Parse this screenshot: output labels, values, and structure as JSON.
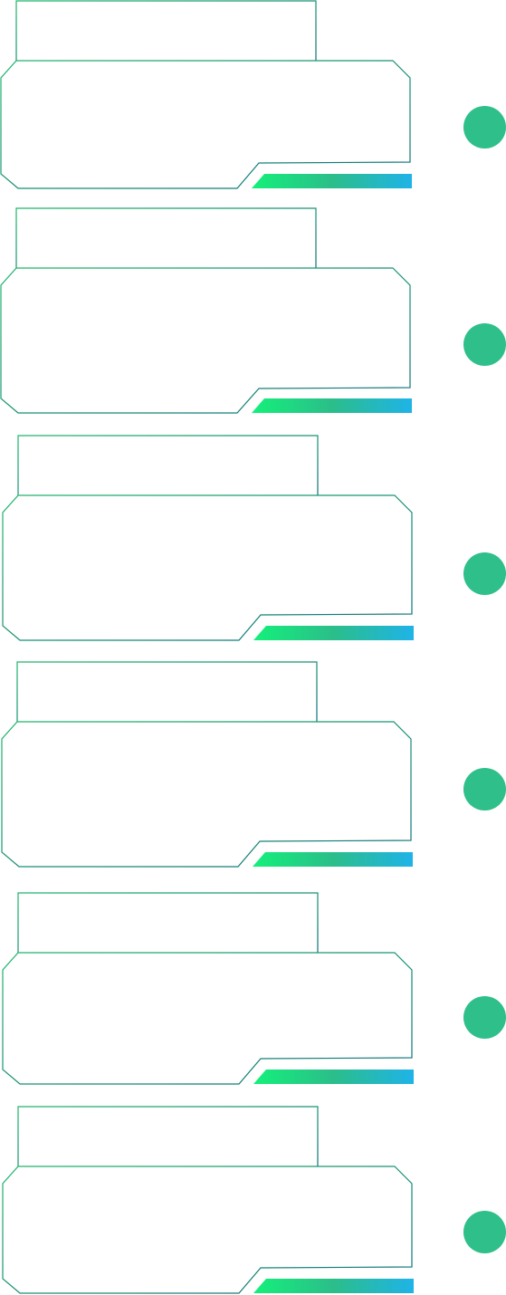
{
  "theme": {
    "border_start": "#1FB56B",
    "border_end": "#0E6E7A",
    "bar_start": "#14F07A",
    "bar_mid": "#2BBE8A",
    "bar_end": "#1FB3E8",
    "dot_color": "#2EBF8A"
  },
  "panels": [
    {
      "id": "panel-1"
    },
    {
      "id": "panel-2"
    },
    {
      "id": "panel-3"
    },
    {
      "id": "panel-4"
    },
    {
      "id": "panel-5"
    },
    {
      "id": "panel-6"
    }
  ]
}
